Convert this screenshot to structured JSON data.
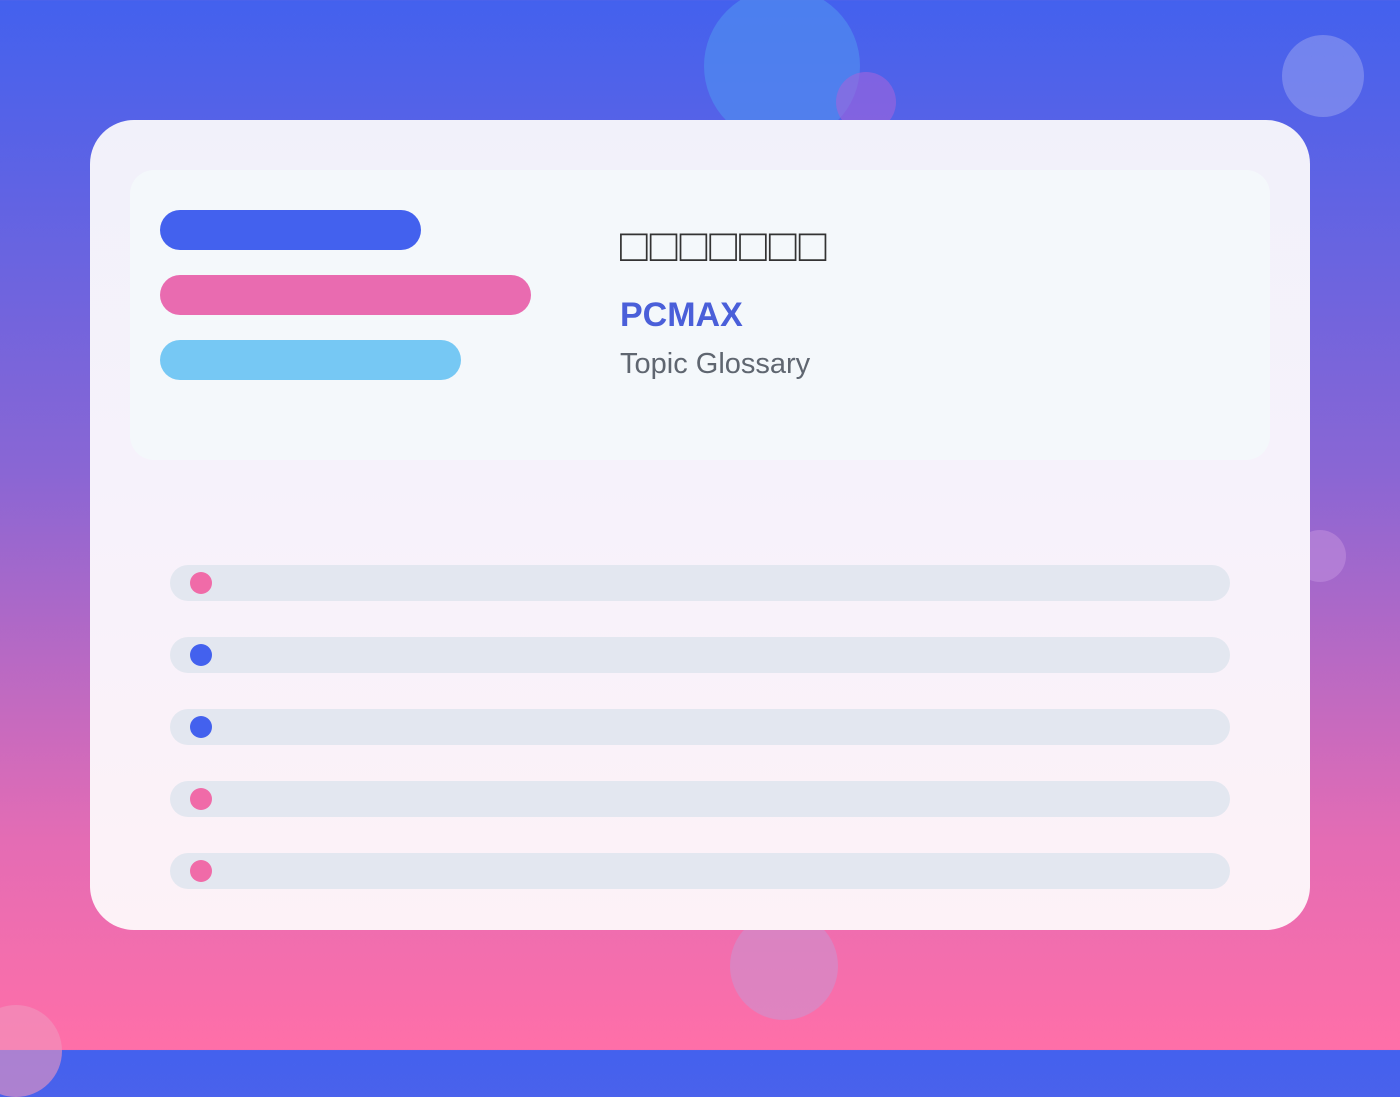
{
  "header": {
    "title": "□□□□□□□",
    "brand": "PCMAX",
    "subtitle": "Topic Glossary"
  }
}
